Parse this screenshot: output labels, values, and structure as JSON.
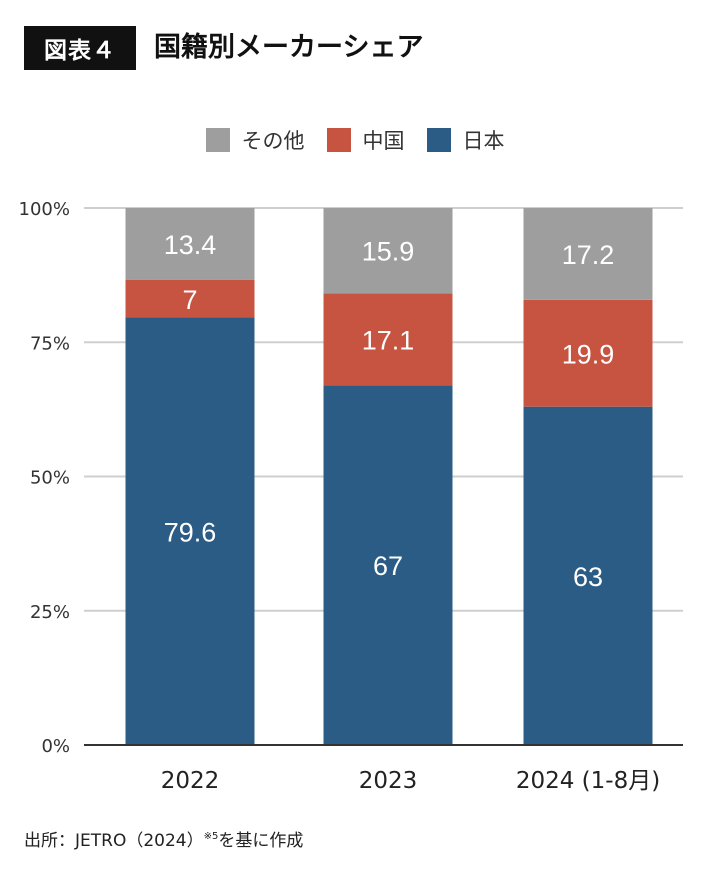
{
  "header": {
    "badge": "図表４",
    "title": "国籍別メーカーシェア"
  },
  "colors": {
    "その他": "#9e9e9e",
    "中国": "#c65440",
    "日本": "#2b5c85",
    "grid": "#cfcfcf",
    "axis": "#333333"
  },
  "legend": {
    "items": [
      {
        "label": "その他",
        "color": "#9e9e9e"
      },
      {
        "label": "中国",
        "color": "#c65440"
      },
      {
        "label": "日本",
        "color": "#2b5c85"
      }
    ]
  },
  "chart_data": {
    "type": "bar",
    "stacked": true,
    "title": "国籍別メーカーシェア",
    "categories": [
      "2022",
      "2023",
      "2024 (1-8月)"
    ],
    "series": [
      {
        "name": "日本",
        "values": [
          79.6,
          67,
          63
        ]
      },
      {
        "name": "中国",
        "values": [
          7,
          17.1,
          19.9
        ]
      },
      {
        "name": "その他",
        "values": [
          13.4,
          15.9,
          17.2
        ]
      }
    ],
    "data_labels": {
      "日本": [
        "79.6",
        "67",
        "63"
      ],
      "中国": [
        "7",
        "17.1",
        "19.9"
      ],
      "その他": [
        "13.4",
        "15.9",
        "17.2"
      ]
    },
    "ylim": [
      0,
      100
    ],
    "yticks": [
      0,
      25,
      50,
      75,
      100
    ],
    "ytick_labels": [
      "0%",
      "25%",
      "50%",
      "75%",
      "100%"
    ],
    "xlabel": "",
    "ylabel": "",
    "grid": true,
    "legend_position": "top-center"
  },
  "source": {
    "prefix": "出所：JETRO（2024）",
    "note_mark": "※5",
    "suffix": "を基に作成"
  }
}
